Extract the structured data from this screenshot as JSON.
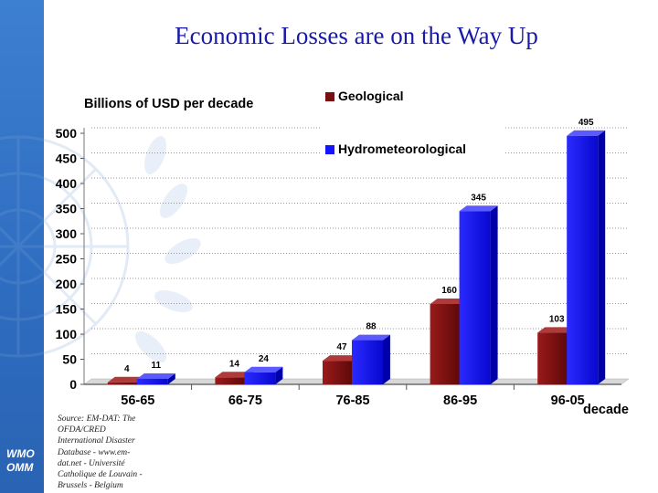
{
  "slide": {
    "title": "Economic Losses are on the Way Up",
    "source_note": "Source: EM-DAT: The OFDA/CRED International Disaster Database - www.em-dat.net - Université Catholique de Louvain - Brussels - Belgium",
    "logo_lines": [
      "WMO",
      "OMM"
    ]
  },
  "chart_data": {
    "type": "bar",
    "ylabel": "Billions of USD per decade",
    "xlabel": "decade",
    "categories": [
      "56-65",
      "66-75",
      "76-85",
      "86-95",
      "96-05"
    ],
    "series": [
      {
        "name": "Geological",
        "values": [
          4,
          14,
          47,
          160,
          103
        ],
        "color": "#7a0f0f"
      },
      {
        "name": "Hydrometeorological",
        "values": [
          11,
          24,
          88,
          345,
          495
        ],
        "color": "#1414ff"
      }
    ],
    "ylim": [
      0,
      500
    ],
    "yticks": [
      0,
      50,
      100,
      150,
      200,
      250,
      300,
      350,
      400,
      450,
      500
    ],
    "grid": true,
    "legend": "top-center"
  }
}
